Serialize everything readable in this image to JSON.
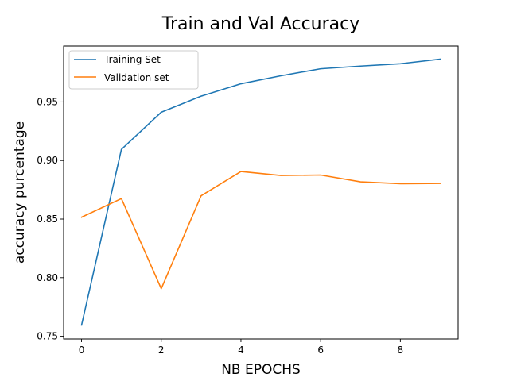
{
  "chart_data": {
    "type": "line",
    "title": "Train and Val Accuracy",
    "xlabel": "NB EPOCHS",
    "ylabel": "accuracy purcentage",
    "x": [
      0,
      1,
      2,
      3,
      4,
      5,
      6,
      7,
      8,
      9
    ],
    "xlim": [
      -0.45,
      9.45
    ],
    "ylim": [
      0.7477,
      0.9977
    ],
    "xticks": [
      0,
      2,
      4,
      6,
      8
    ],
    "xtick_labels": [
      "0",
      "2",
      "4",
      "6",
      "8"
    ],
    "yticks": [
      0.75,
      0.8,
      0.85,
      0.9,
      0.95
    ],
    "ytick_labels": [
      "0.75",
      "0.80",
      "0.85",
      "0.90",
      "0.95"
    ],
    "grid": false,
    "legend_position": "top-left",
    "series": [
      {
        "name": "Training Set",
        "color": "#1f77b4",
        "values": [
          0.7595,
          0.9095,
          0.9412,
          0.9549,
          0.9655,
          0.9723,
          0.9783,
          0.9806,
          0.9826,
          0.9865
        ]
      },
      {
        "name": "Validation set",
        "color": "#ff7f0e",
        "values": [
          0.8516,
          0.8675,
          0.7906,
          0.8699,
          0.8906,
          0.8872,
          0.8876,
          0.8818,
          0.8802,
          0.8804
        ]
      }
    ]
  }
}
